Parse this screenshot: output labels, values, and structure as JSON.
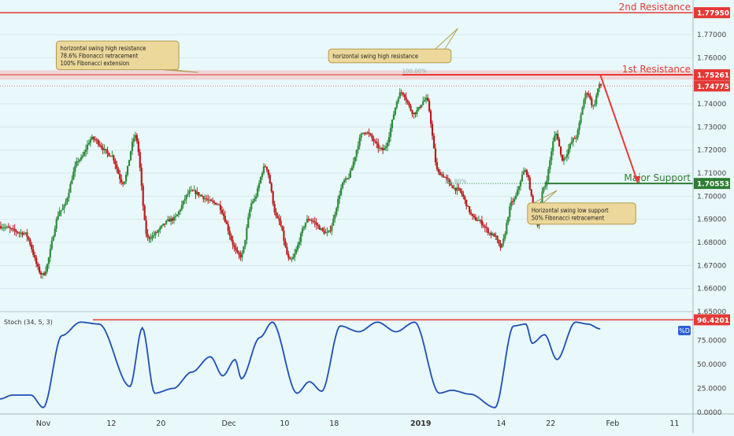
{
  "chart_data": {
    "type": "candlestick",
    "instrument": "",
    "colors": {
      "background": "#e9f8fb",
      "up_candle": "#2e8b3c",
      "down_candle": "#b71c1c",
      "resistance": "#e53935",
      "support": "#2e7d32",
      "stoch_line": "#1e4fb5",
      "callout_fill": "#ecd89a",
      "callout_border": "#b39b4e",
      "axis_text": "#454545"
    },
    "price_axis": {
      "range": [
        1.65,
        1.785
      ],
      "tick_labels": [
        "1.77000",
        "1.76000",
        "1.74000",
        "1.73000",
        "1.72000",
        "1.71000",
        "1.70000",
        "1.69000",
        "1.68000",
        "1.67000",
        "1.66000",
        "1.65000"
      ]
    },
    "x_axis": {
      "range": [
        "2018-10-25",
        "2019-02-14"
      ],
      "ticks": [
        {
          "label": "Nov",
          "date": "2018-11-01",
          "bold": false
        },
        {
          "label": "12",
          "date": "2018-11-12",
          "bold": false
        },
        {
          "label": "20",
          "date": "2018-11-20",
          "bold": false
        },
        {
          "label": "Dec",
          "date": "2018-12-01",
          "bold": false
        },
        {
          "label": "10",
          "date": "2018-12-10",
          "bold": false
        },
        {
          "label": "18",
          "date": "2018-12-18",
          "bold": false
        },
        {
          "label": "2019",
          "date": "2019-01-01",
          "bold": true
        },
        {
          "label": "14",
          "date": "2019-01-14",
          "bold": false
        },
        {
          "label": "22",
          "date": "2019-01-22",
          "bold": false
        },
        {
          "label": "Feb",
          "date": "2019-02-01",
          "bold": false
        },
        {
          "label": "11",
          "date": "2019-02-11",
          "bold": false
        }
      ]
    },
    "price_anchors": [
      {
        "date": "2018-10-25",
        "price": 1.687
      },
      {
        "date": "2018-10-29",
        "price": 1.684
      },
      {
        "date": "2018-11-01",
        "price": 1.666
      },
      {
        "date": "2018-11-04",
        "price": 1.694
      },
      {
        "date": "2018-11-07",
        "price": 1.716
      },
      {
        "date": "2018-11-09",
        "price": 1.725
      },
      {
        "date": "2018-11-12",
        "price": 1.718
      },
      {
        "date": "2018-11-14",
        "price": 1.706
      },
      {
        "date": "2018-11-16",
        "price": 1.726
      },
      {
        "date": "2018-11-18",
        "price": 1.682
      },
      {
        "date": "2018-11-22",
        "price": 1.69
      },
      {
        "date": "2018-11-25",
        "price": 1.702
      },
      {
        "date": "2018-11-29",
        "price": 1.697
      },
      {
        "date": "2018-12-03",
        "price": 1.674
      },
      {
        "date": "2018-12-05",
        "price": 1.698
      },
      {
        "date": "2018-12-07",
        "price": 1.713
      },
      {
        "date": "2018-12-09",
        "price": 1.69
      },
      {
        "date": "2018-12-11",
        "price": 1.672
      },
      {
        "date": "2018-12-14",
        "price": 1.69
      },
      {
        "date": "2018-12-17",
        "price": 1.684
      },
      {
        "date": "2018-12-20",
        "price": 1.707
      },
      {
        "date": "2018-12-23",
        "price": 1.728
      },
      {
        "date": "2018-12-26",
        "price": 1.72
      },
      {
        "date": "2018-12-29",
        "price": 1.745
      },
      {
        "date": "2018-12-31",
        "price": 1.736
      },
      {
        "date": "2019-01-02",
        "price": 1.742
      },
      {
        "date": "2019-01-04",
        "price": 1.71
      },
      {
        "date": "2019-01-07",
        "price": 1.703
      },
      {
        "date": "2019-01-10",
        "price": 1.69
      },
      {
        "date": "2019-01-13",
        "price": 1.683
      },
      {
        "date": "2019-01-14",
        "price": 1.678
      },
      {
        "date": "2019-01-16",
        "price": 1.698
      },
      {
        "date": "2019-01-18",
        "price": 1.711
      },
      {
        "date": "2019-01-20",
        "price": 1.688
      },
      {
        "date": "2019-01-21",
        "price": 1.704
      },
      {
        "date": "2019-01-23",
        "price": 1.727
      },
      {
        "date": "2019-01-24",
        "price": 1.716
      },
      {
        "date": "2019-01-26",
        "price": 1.725
      },
      {
        "date": "2019-01-28",
        "price": 1.745
      },
      {
        "date": "2019-01-29",
        "price": 1.739
      },
      {
        "date": "2019-01-30",
        "price": 1.748
      }
    ],
    "stochastic": {
      "label": "Stoch (34, 5, 3)",
      "badge": "%D",
      "range": [
        0,
        100
      ],
      "tick_labels": [
        "75.0000",
        "50.0000",
        "25.0000",
        "0.0000"
      ],
      "anchors": [
        {
          "date": "2018-10-25",
          "value": 14
        },
        {
          "date": "2018-10-27",
          "value": 18
        },
        {
          "date": "2018-10-30",
          "value": 18
        },
        {
          "date": "2018-11-01",
          "value": 5
        },
        {
          "date": "2018-11-04",
          "value": 80
        },
        {
          "date": "2018-11-07",
          "value": 94
        },
        {
          "date": "2018-11-10",
          "value": 92
        },
        {
          "date": "2018-11-15",
          "value": 27
        },
        {
          "date": "2018-11-17",
          "value": 88
        },
        {
          "date": "2018-11-19",
          "value": 20
        },
        {
          "date": "2018-11-22",
          "value": 25
        },
        {
          "date": "2018-11-25",
          "value": 42
        },
        {
          "date": "2018-11-28",
          "value": 58
        },
        {
          "date": "2018-11-30",
          "value": 38
        },
        {
          "date": "2018-12-02",
          "value": 55
        },
        {
          "date": "2018-12-03",
          "value": 35
        },
        {
          "date": "2018-12-06",
          "value": 78
        },
        {
          "date": "2018-12-08",
          "value": 94
        },
        {
          "date": "2018-12-12",
          "value": 20
        },
        {
          "date": "2018-12-14",
          "value": 32
        },
        {
          "date": "2018-12-16",
          "value": 22
        },
        {
          "date": "2018-12-19",
          "value": 90
        },
        {
          "date": "2018-12-22",
          "value": 84
        },
        {
          "date": "2018-12-25",
          "value": 94
        },
        {
          "date": "2018-12-28",
          "value": 84
        },
        {
          "date": "2018-12-31",
          "value": 94
        },
        {
          "date": "2019-01-04",
          "value": 20
        },
        {
          "date": "2019-01-06",
          "value": 23
        },
        {
          "date": "2019-01-09",
          "value": 19
        },
        {
          "date": "2019-01-13",
          "value": 5
        },
        {
          "date": "2019-01-16",
          "value": 90
        },
        {
          "date": "2019-01-18",
          "value": 92
        },
        {
          "date": "2019-01-19",
          "value": 72
        },
        {
          "date": "2019-01-21",
          "value": 81
        },
        {
          "date": "2019-01-23",
          "value": 55
        },
        {
          "date": "2019-01-26",
          "value": 94
        },
        {
          "date": "2019-01-28",
          "value": 92
        },
        {
          "date": "2019-01-30",
          "value": 87
        }
      ],
      "current_value": 96.4201,
      "current_value_label": "96.4201"
    },
    "levels": [
      {
        "name": "2nd Resistance",
        "price": 1.7795,
        "price_label": "1.77950",
        "color": "#e53935"
      },
      {
        "name": "1st Resistance",
        "price": 1.75261,
        "price_label": "1.75261",
        "color": "#e53935"
      },
      {
        "name": "Major Support",
        "price": 1.70553,
        "price_label": "1.70553",
        "color": "#2e7d32"
      }
    ],
    "current_price": {
      "price": 1.74775,
      "price_label": "1.74775",
      "color": "#e53935"
    },
    "fib_labels": [
      {
        "text": "100.00%",
        "date": "2018-12-29",
        "price": 1.7535
      },
      {
        "text": "61.80%",
        "date": "2019-01-05",
        "price": 1.7057
      }
    ],
    "projection": {
      "from": {
        "date": "2019-01-30",
        "price": 1.7527
      },
      "to": {
        "date": "2019-02-05",
        "price": 1.7055
      }
    },
    "annotations": [
      {
        "lines": [
          "horizontal swing high resistance",
          "78.6% Fibonacci retracement",
          "100% Fibonacci extension"
        ],
        "date": "2018-11-13",
        "price": 1.761
      },
      {
        "lines": [
          "horizontal swing high resistance"
        ],
        "date": "2018-12-27",
        "price": 1.7608
      },
      {
        "lines": [
          "Horizontal swing low support",
          "50% Fibonacci retracement"
        ],
        "date": "2019-01-27",
        "price": 1.6925
      }
    ]
  }
}
